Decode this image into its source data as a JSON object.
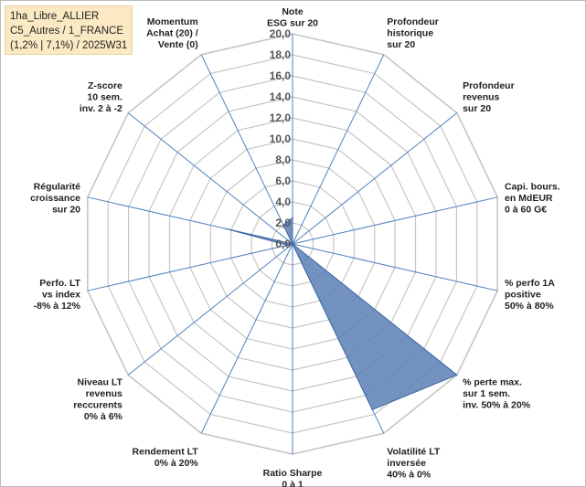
{
  "info_box": {
    "line1": "1ha_Libre_ALLIER",
    "line2": "C5_Autres / 1_FRANCE",
    "line3": "(1,2% | 7,1%) / 2025W31"
  },
  "chart_data": {
    "type": "radar",
    "title": "",
    "rmin": 0,
    "rmax": 20,
    "tick_step": 2,
    "tick_labels": [
      "0,0",
      "2,0",
      "4,0",
      "6,0",
      "8,0",
      "10,0",
      "12,0",
      "14,0",
      "16,0",
      "18,0",
      "20,0"
    ],
    "axes": [
      [
        "Note",
        "ESG sur 20"
      ],
      [
        "Profondeur",
        "historique",
        "sur 20"
      ],
      [
        "Profondeur",
        "revenus",
        "sur 20"
      ],
      [
        "Capi. bours.",
        "en MdEUR",
        "0 à 60 G€"
      ],
      [
        "% perfo 1A",
        "positive",
        "50% à 80%"
      ],
      [
        "% perte max.",
        "sur 1 sem.",
        "inv. 50% à 20%"
      ],
      [
        "Volatilité LT",
        "inversée",
        "40% à 0%"
      ],
      [
        "Ratio Sharpe",
        "0 à 1"
      ],
      [
        "Rendement LT",
        "0% à 20%"
      ],
      [
        "Niveau LT",
        "revenus",
        "reccurents",
        "0% à 6%"
      ],
      [
        "Perfo. LT",
        "vs index",
        "-8% à 12%"
      ],
      [
        "Régularité",
        "croissance",
        "sur 20"
      ],
      [
        "Z-score",
        "10 sem.",
        "inv. 2 à -2"
      ],
      [
        "Momentum",
        "Achat (20) /",
        "Vente (0)"
      ]
    ],
    "series": [
      {
        "values": [
          2.5,
          0,
          0,
          0,
          0,
          20,
          17.5,
          0,
          0,
          0,
          0.5,
          6.5,
          0,
          2
        ],
        "fill": "#5b7fb4",
        "fill_opacity": 0.85,
        "stroke": "#3e6aa8"
      }
    ],
    "colors": {
      "grid": "#c6c6c6",
      "spoke": "#4f81bd",
      "text": "#222222",
      "tick": "#555555"
    }
  }
}
